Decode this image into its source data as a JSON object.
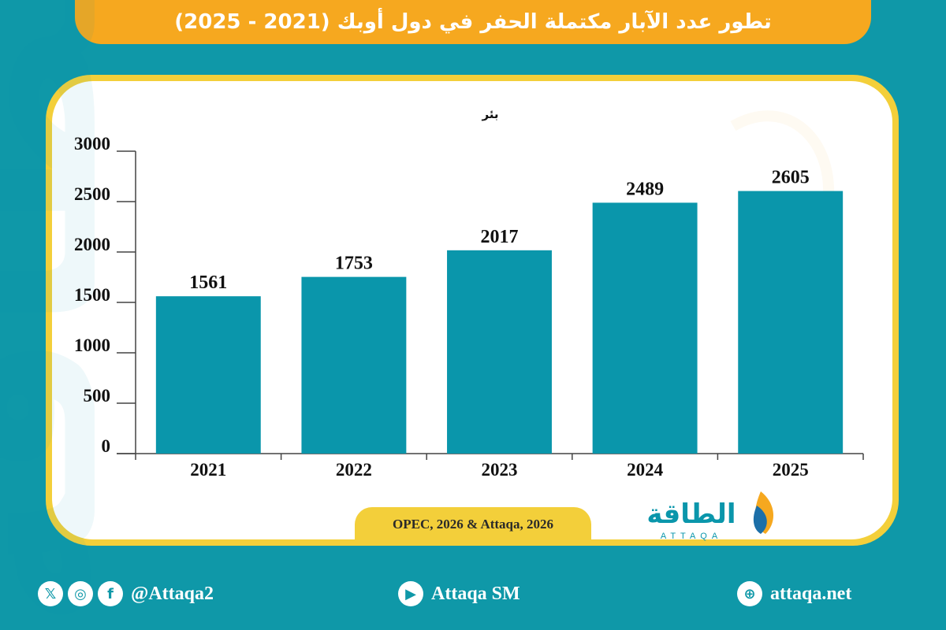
{
  "header": {
    "title": "تطور عدد الآبار مكتملة الحفر في دول أوبك (2021 - 2025)"
  },
  "chart_data": {
    "type": "bar",
    "title": "تطور عدد الآبار مكتملة الحفر في دول أوبك (2021 - 2025)",
    "ylabel": "بئر",
    "xlabel": "",
    "categories": [
      "2021",
      "2022",
      "2023",
      "2024",
      "2025"
    ],
    "values": [
      1561,
      1753,
      2017,
      2489,
      2605
    ],
    "ylim": [
      0,
      3000
    ],
    "yticks": [
      0,
      500,
      1000,
      1500,
      2000,
      2500,
      3000
    ],
    "bar_color": "#0a96ab",
    "grid": false,
    "legend": "none"
  },
  "source": "OPEC, 2026 & Attaqa, 2026",
  "logo": {
    "arabic": "الطاقة",
    "latin": "ATTAQA"
  },
  "footer": {
    "social_handle": "@Attaqa2",
    "youtube": "Attaqa SM",
    "website": "attaqa.net",
    "icons": [
      "x-icon",
      "instagram-icon",
      "facebook-icon",
      "youtube-icon",
      "globe-icon"
    ]
  },
  "colors": {
    "background": "#0f98a8",
    "accent": "#f6a81f",
    "card_border": "#f3cf3a",
    "bar": "#0a96ab"
  }
}
